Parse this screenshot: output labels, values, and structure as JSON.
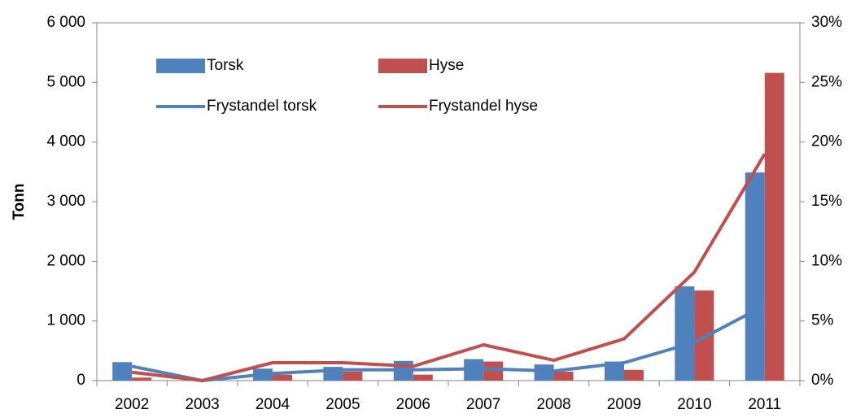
{
  "chart_data": {
    "type": "bar",
    "y_label": "Tonn",
    "categories": [
      "2002",
      "2003",
      "2004",
      "2005",
      "2006",
      "2007",
      "2008",
      "2009",
      "2010",
      "2011"
    ],
    "series": [
      {
        "name": "Torsk",
        "type": "bar",
        "color": "#4f81bd",
        "values": [
          310,
          10,
          200,
          230,
          330,
          360,
          270,
          320,
          1580,
          3490
        ]
      },
      {
        "name": "Hyse",
        "type": "bar",
        "color": "#c0504d",
        "values": [
          50,
          0,
          100,
          150,
          100,
          320,
          150,
          180,
          1510,
          5160
        ]
      },
      {
        "name": "Frystandel torsk",
        "type": "line",
        "axis": "y2",
        "color": "#4f81bd",
        "values": [
          1.2,
          0,
          0.6,
          0.9,
          0.9,
          1.0,
          0.8,
          1.5,
          3.2,
          6.3
        ]
      },
      {
        "name": "Frystandel hyse",
        "type": "line",
        "axis": "y2",
        "color": "#c0504d",
        "values": [
          0.7,
          0,
          1.5,
          1.5,
          1.2,
          3.0,
          1.7,
          3.5,
          9.1,
          19.0
        ]
      }
    ],
    "ylim": [
      0,
      6000
    ],
    "yticks": [
      0,
      {
        "value": 1000,
        "label": "1 000"
      },
      {
        "value": 2000,
        "label": "2 000"
      },
      {
        "value": 3000,
        "label": "3 000"
      },
      {
        "value": 4000,
        "label": "4 000"
      },
      {
        "value": 5000,
        "label": "5 000"
      },
      {
        "value": 6000,
        "label": "6 000"
      }
    ],
    "y2lim": [
      0,
      30
    ],
    "y2ticks": [
      {
        "value": 0,
        "label": "0%"
      },
      {
        "value": 5,
        "label": "5%"
      },
      {
        "value": 10,
        "label": "10%"
      },
      {
        "value": 15,
        "label": "15%"
      },
      {
        "value": 20,
        "label": "20%"
      },
      {
        "value": 25,
        "label": "25%"
      },
      {
        "value": 30,
        "label": "30%"
      }
    ],
    "grid": false,
    "legend": "top-left"
  }
}
